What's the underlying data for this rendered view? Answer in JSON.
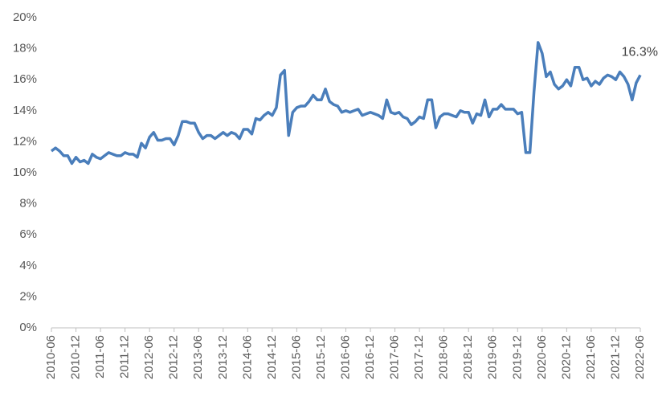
{
  "chart_data": {
    "type": "line",
    "categories": [
      "2010-06",
      null,
      null,
      null,
      null,
      null,
      "2010-12",
      null,
      null,
      null,
      null,
      null,
      "2011-06",
      null,
      null,
      null,
      null,
      null,
      "2011-12",
      null,
      null,
      null,
      null,
      null,
      "2012-06",
      null,
      null,
      null,
      null,
      null,
      "2012-12",
      null,
      null,
      null,
      null,
      null,
      "2013-06",
      null,
      null,
      null,
      null,
      null,
      "2013-12",
      null,
      null,
      null,
      null,
      null,
      "2014-06",
      null,
      null,
      null,
      null,
      null,
      "2014-12",
      null,
      null,
      null,
      null,
      null,
      "2015-06",
      null,
      null,
      null,
      null,
      null,
      "2015-12",
      null,
      null,
      null,
      null,
      null,
      "2016-06",
      null,
      null,
      null,
      null,
      null,
      "2016-12",
      null,
      null,
      null,
      null,
      null,
      "2017-06",
      null,
      null,
      null,
      null,
      null,
      "2017-12",
      null,
      null,
      null,
      null,
      null,
      "2018-06",
      null,
      null,
      null,
      null,
      null,
      "2018-12",
      null,
      null,
      null,
      null,
      null,
      "2019-06",
      null,
      null,
      null,
      null,
      null,
      "2019-12",
      null,
      null,
      null,
      null,
      null,
      "2020-06",
      null,
      null,
      null,
      null,
      null,
      "2020-12",
      null,
      null,
      null,
      null,
      null,
      "2021-06",
      null,
      null,
      null,
      null,
      null,
      "2021-12",
      null,
      null,
      null,
      null,
      null,
      "2022-06"
    ],
    "series": [
      {
        "color": "#4a7ebb",
        "values": [
          11.4,
          11.6,
          11.4,
          11.1,
          11.1,
          10.6,
          11.0,
          10.7,
          10.8,
          10.6,
          11.2,
          11.0,
          10.9,
          11.1,
          11.3,
          11.2,
          11.1,
          11.1,
          11.3,
          11.2,
          11.2,
          11.0,
          11.9,
          11.6,
          12.3,
          12.6,
          12.1,
          12.1,
          12.2,
          12.2,
          11.8,
          12.4,
          13.3,
          13.3,
          13.2,
          13.2,
          12.6,
          12.2,
          12.4,
          12.4,
          12.2,
          12.4,
          12.6,
          12.4,
          12.6,
          12.5,
          12.2,
          12.8,
          12.8,
          12.5,
          13.5,
          13.4,
          13.7,
          13.9,
          13.7,
          14.2,
          16.3,
          16.6,
          12.4,
          13.9,
          14.2,
          14.3,
          14.3,
          14.6,
          15.0,
          14.7,
          14.7,
          15.4,
          14.6,
          14.4,
          14.3,
          13.9,
          14.0,
          13.9,
          14.0,
          14.1,
          13.7,
          13.8,
          13.9,
          13.8,
          13.7,
          13.5,
          14.7,
          13.9,
          13.8,
          13.9,
          13.6,
          13.5,
          13.1,
          13.3,
          13.6,
          13.5,
          14.7,
          14.7,
          12.9,
          13.6,
          13.8,
          13.8,
          13.7,
          13.6,
          14.0,
          13.9,
          13.9,
          13.2,
          13.8,
          13.7,
          14.7,
          13.6,
          14.1,
          14.1,
          14.4,
          14.1,
          14.1,
          14.1,
          13.8,
          13.9,
          11.3,
          11.3,
          15.2,
          18.4,
          17.7,
          16.2,
          16.5,
          15.7,
          15.4,
          15.6,
          16.0,
          15.6,
          16.8,
          16.8,
          16.0,
          16.1,
          15.6,
          15.9,
          15.7,
          16.1,
          16.3,
          16.2,
          16.0,
          16.5,
          16.2,
          15.7,
          14.7,
          15.8,
          16.3
        ]
      }
    ],
    "annotation": "16.3%",
    "ylim": [
      0,
      20
    ],
    "yticks": [
      {
        "value": 0,
        "label": "0%"
      },
      {
        "value": 2,
        "label": "2%"
      },
      {
        "value": 4,
        "label": "4%"
      },
      {
        "value": 6,
        "label": "6%"
      },
      {
        "value": 8,
        "label": "8%"
      },
      {
        "value": 10,
        "label": "10%"
      },
      {
        "value": 12,
        "label": "12%"
      },
      {
        "value": 14,
        "label": "14%"
      },
      {
        "value": 16,
        "label": "16%"
      },
      {
        "value": 18,
        "label": "18%"
      },
      {
        "value": 20,
        "label": "20%"
      }
    ],
    "grid": false
  }
}
